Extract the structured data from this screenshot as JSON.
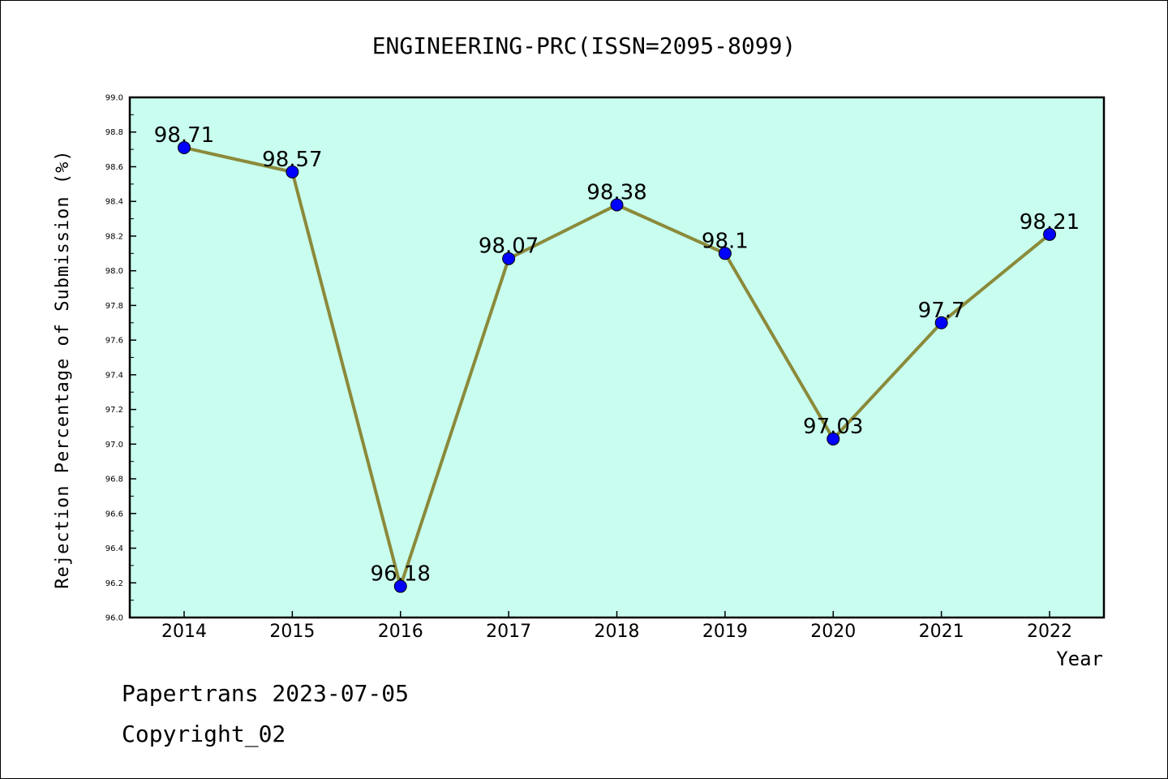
{
  "footer": {
    "line1": "Papertrans 2023-07-05",
    "line2": "Copyright_02"
  },
  "colors": {
    "plot_background": "#c8fdef",
    "line": "#8b8a3a",
    "marker": "#0000ff"
  },
  "chart_data": {
    "type": "line",
    "title": "ENGINEERING-PRC(ISSN=2095-8099)",
    "xlabel": "Year",
    "ylabel": "Rejection Percentage of Submission (%)",
    "x": [
      "2014",
      "2015",
      "2016",
      "2017",
      "2018",
      "2019",
      "2020",
      "2021",
      "2022"
    ],
    "series": [
      {
        "values": [
          98.71,
          98.57,
          96.18,
          98.07,
          98.38,
          98.1,
          97.03,
          97.7,
          98.21
        ],
        "labels": [
          "98.71",
          "98.57",
          "96.18",
          "98.07",
          "98.38",
          "98.1",
          "97.03",
          "97.7",
          "98.21"
        ]
      }
    ],
    "ylim": [
      96.0,
      99.0
    ],
    "yticks": [
      "96.0",
      "96.2",
      "96.4",
      "96.6",
      "96.8",
      "97.0",
      "97.2",
      "97.4",
      "97.6",
      "97.8",
      "98.0",
      "98.2",
      "98.4",
      "98.6",
      "98.8",
      "99.0"
    ],
    "grid": false,
    "legend": "none"
  }
}
